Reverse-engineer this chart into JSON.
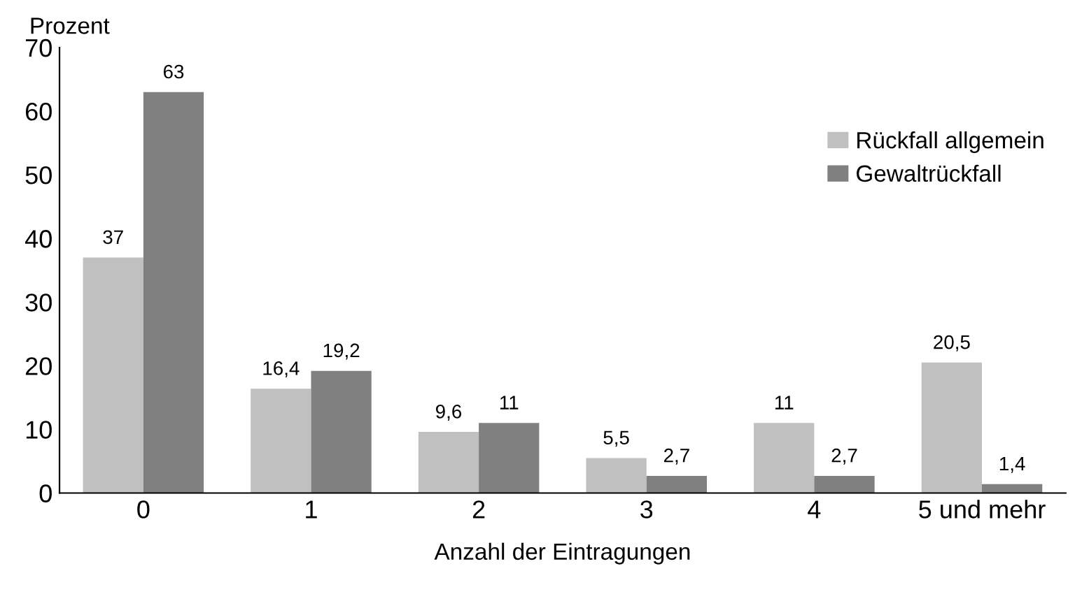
{
  "chart_data": {
    "type": "bar",
    "ylabel": "Prozent",
    "xlabel": "Anzahl der Eintragungen",
    "categories": [
      "0",
      "1",
      "2",
      "3",
      "4",
      "5 und mehr"
    ],
    "series": [
      {
        "name": "Rückfall allgemein",
        "color": "#c0c0c0",
        "values": [
          37,
          16.4,
          9.6,
          5.5,
          11,
          20.5
        ],
        "value_labels": [
          "37",
          "16,4",
          "9,6",
          "5,5",
          "11",
          "20,5"
        ]
      },
      {
        "name": "Gewaltrückfall",
        "color": "#808080",
        "values": [
          63,
          19.2,
          11,
          2.7,
          2.7,
          1.4
        ],
        "value_labels": [
          "63",
          "19,2",
          "11",
          "2,7",
          "2,7",
          "1,4"
        ]
      }
    ],
    "ylim": [
      0,
      70
    ],
    "yticks": [
      0,
      10,
      20,
      30,
      40,
      50,
      60,
      70
    ],
    "grid": false,
    "legend": "right"
  }
}
